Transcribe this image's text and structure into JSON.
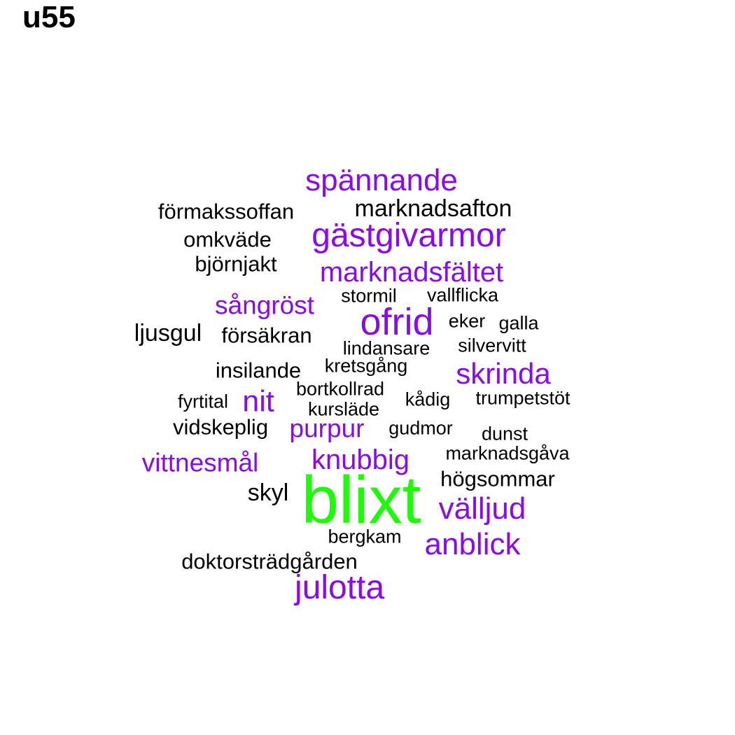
{
  "title": "u55",
  "colors": {
    "black": "#000000",
    "purple": "#8b0aeb",
    "green": "#1efb07"
  },
  "words": [
    {
      "text": "spännande",
      "color": "purple",
      "weight": 4
    },
    {
      "text": "förmakssoffan",
      "color": "black",
      "weight": 2
    },
    {
      "text": "marknadsafton",
      "color": "black",
      "weight": 2.5
    },
    {
      "text": "gästgivarmor",
      "color": "purple",
      "weight": 5
    },
    {
      "text": "omkväde",
      "color": "black",
      "weight": 2
    },
    {
      "text": "björnjakt",
      "color": "black",
      "weight": 2
    },
    {
      "text": "marknadsfältet",
      "color": "purple",
      "weight": 4
    },
    {
      "text": "stormil",
      "color": "black",
      "weight": 1.5
    },
    {
      "text": "vallflicka",
      "color": "black",
      "weight": 1.5
    },
    {
      "text": "sångröst",
      "color": "purple",
      "weight": 3
    },
    {
      "text": "ofrid",
      "color": "purple",
      "weight": 6
    },
    {
      "text": "eker",
      "color": "black",
      "weight": 1.5
    },
    {
      "text": "galla",
      "color": "black",
      "weight": 1.5
    },
    {
      "text": "ljusgul",
      "color": "black",
      "weight": 2.5
    },
    {
      "text": "försäkran",
      "color": "black",
      "weight": 2
    },
    {
      "text": "silvervitt",
      "color": "black",
      "weight": 1.5
    },
    {
      "text": "lindansare",
      "color": "black",
      "weight": 1.5
    },
    {
      "text": "kretsgång",
      "color": "black",
      "weight": 1.5
    },
    {
      "text": "insilande",
      "color": "black",
      "weight": 2
    },
    {
      "text": "skrinda",
      "color": "purple",
      "weight": 4
    },
    {
      "text": "bortkollrad",
      "color": "black",
      "weight": 1.5
    },
    {
      "text": "fyrtital",
      "color": "black",
      "weight": 1.5
    },
    {
      "text": "nit",
      "color": "purple",
      "weight": 4
    },
    {
      "text": "kådig",
      "color": "black",
      "weight": 1.5
    },
    {
      "text": "trumpetstöt",
      "color": "black",
      "weight": 1.5
    },
    {
      "text": "kursläde",
      "color": "black",
      "weight": 1.5
    },
    {
      "text": "vidskeplig",
      "color": "black",
      "weight": 2
    },
    {
      "text": "purpur",
      "color": "purple",
      "weight": 3
    },
    {
      "text": "gudmor",
      "color": "black",
      "weight": 1.5
    },
    {
      "text": "dunst",
      "color": "black",
      "weight": 1.5
    },
    {
      "text": "vittnesmål",
      "color": "purple",
      "weight": 3.5
    },
    {
      "text": "knubbig",
      "color": "purple",
      "weight": 3.5
    },
    {
      "text": "marknadsgåva",
      "color": "black",
      "weight": 1.5
    },
    {
      "text": "högsommar",
      "color": "black",
      "weight": 2
    },
    {
      "text": "skyl",
      "color": "black",
      "weight": 2
    },
    {
      "text": "blixt",
      "color": "green",
      "weight": 10
    },
    {
      "text": "välljud",
      "color": "purple",
      "weight": 4
    },
    {
      "text": "bergkam",
      "color": "black",
      "weight": 1.5
    },
    {
      "text": "anblick",
      "color": "purple",
      "weight": 4
    },
    {
      "text": "doktorsträdgården",
      "color": "black",
      "weight": 2
    },
    {
      "text": "julotta",
      "color": "purple",
      "weight": 5
    }
  ]
}
